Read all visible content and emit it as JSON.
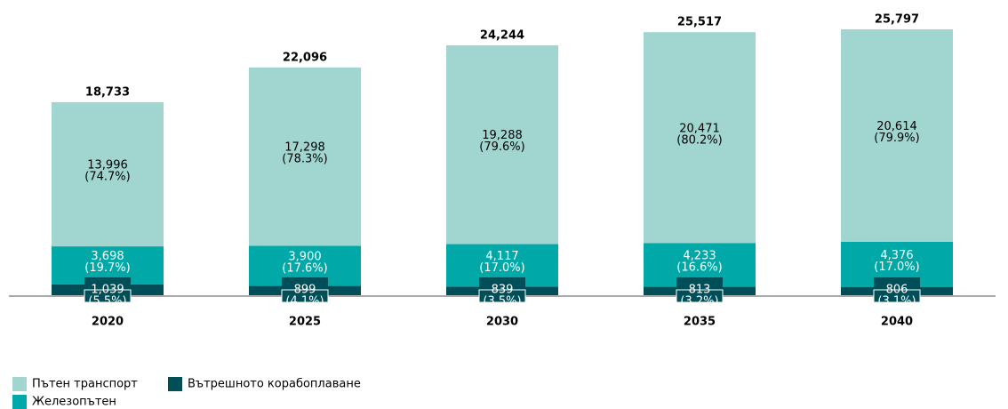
{
  "chart_data": {
    "type": "stacked_bar",
    "categories": [
      "2020",
      "2025",
      "2030",
      "2035",
      "2040"
    ],
    "series": [
      {
        "name": "Вътрешното корабоплаване",
        "color": "#004f58",
        "label_color": "#ffffff",
        "values": [
          1039,
          899,
          839,
          813,
          806
        ],
        "value_labels": [
          [
            "1,039",
            "(5.5%)"
          ],
          [
            "899",
            "(4.1%)"
          ],
          [
            "839",
            "(3.5%)"
          ],
          [
            "813",
            "(3.2%)"
          ],
          [
            "806",
            "(3.1%)"
          ]
        ]
      },
      {
        "name": "Железопътен",
        "color": "#00a9a7",
        "label_color": "#ffffff",
        "values": [
          3698,
          3900,
          4117,
          4233,
          4376
        ],
        "value_labels": [
          [
            "3,698",
            "(19.7%)"
          ],
          [
            "3,900",
            "(17.6%)"
          ],
          [
            "4,117",
            "(17.0%)"
          ],
          [
            "4,233",
            "(16.6%)"
          ],
          [
            "4,376",
            "(17.0%)"
          ]
        ]
      },
      {
        "name": "Пътен транспорт",
        "color": "#a0d5d0",
        "label_color": "#000000",
        "values": [
          13996,
          17298,
          19288,
          20471,
          20614
        ],
        "value_labels": [
          [
            "13,996",
            "(74.7%)"
          ],
          [
            "17,298",
            "(78.3%)"
          ],
          [
            "19,288",
            "(79.6%)"
          ],
          [
            "20,471",
            "(80.2%)"
          ],
          [
            "20,614",
            "(79.9%)"
          ]
        ]
      }
    ],
    "totals": [
      18733,
      22096,
      24244,
      25517,
      25797
    ],
    "total_labels": [
      "18,733",
      "22,096",
      "24,244",
      "25,517",
      "25,797"
    ],
    "ylim": [
      0,
      27000
    ]
  }
}
